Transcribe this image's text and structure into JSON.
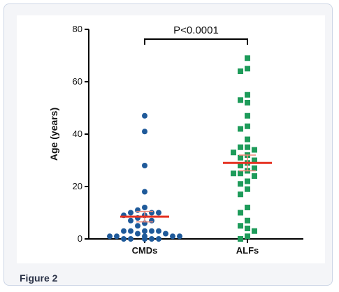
{
  "caption": "Figure 2",
  "chart_data": {
    "type": "scatter",
    "title": "",
    "ylabel": "Age (years)",
    "xlabel": "",
    "ylim": [
      0,
      80
    ],
    "yticks": [
      0,
      20,
      40,
      60,
      80
    ],
    "categories": [
      "CMDs",
      "ALFs"
    ],
    "annotation": "P<0.0001",
    "colors": {
      "CMDs": "#1f5a9a",
      "ALFs": "#1e9b5a",
      "mean": "#e53222",
      "error": "#f08878"
    },
    "series": [
      {
        "name": "CMDs",
        "marker": "circle",
        "values": [
          47,
          41,
          28,
          18,
          12,
          11,
          10,
          10,
          10,
          9,
          9,
          8,
          7,
          7,
          6,
          5,
          3,
          3,
          3,
          3,
          3,
          2,
          2,
          1,
          1,
          1,
          1,
          1,
          0,
          0,
          0,
          0,
          0
        ],
        "mean": 8.5,
        "sem_low": 6.5,
        "sem_high": 10.5
      },
      {
        "name": "ALFs",
        "marker": "square",
        "values": [
          69,
          65,
          64,
          55,
          53,
          52,
          47,
          43,
          42,
          38,
          35,
          35,
          34,
          33,
          32,
          31,
          30,
          29,
          28,
          27,
          26,
          25,
          25,
          24,
          22,
          21,
          19,
          17,
          12,
          10,
          7,
          5,
          4,
          3,
          1,
          0
        ],
        "mean": 29,
        "sem_low": 26,
        "sem_high": 32
      }
    ]
  }
}
